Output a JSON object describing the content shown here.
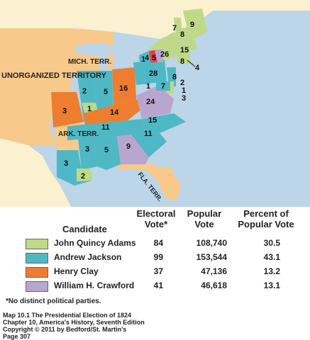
{
  "colors": {
    "water": "#bcd5e8",
    "adams": "#bfd98a",
    "jackson": "#4fb8c5",
    "clay": "#ef7d2f",
    "crawford": "#b9a6cf",
    "no_party_territory": "#f7c98b",
    "no_party_red": "#e3424a",
    "foreign_land": "#fbf0cf",
    "outside_land": "#ffffff"
  },
  "map": {
    "territories": {
      "unorganized": "UNORGANIZED TERRITORY",
      "mich": "MICH. TERR.",
      "ark": "ARK. TERR.",
      "fla": "FLA. TERR."
    },
    "state_votes": {
      "maine": "9",
      "new_hampshire": "8",
      "vermont": "7",
      "massachusetts": "15",
      "ri_ct": "8",
      "ri_pointer": "4",
      "new_york": "26",
      "ny_small_1": "1",
      "ny_small_4": "4",
      "ny_small_5": "5",
      "nj": "8",
      "de_2": "2",
      "de_1": "1",
      "md_3": "3",
      "md_7": "7",
      "md_1": "1",
      "pennsylvania": "28",
      "ohio": "16",
      "indiana": "5",
      "illinois_2": "2",
      "illinois_3": "3",
      "missouri": "3",
      "illinois_1": "1",
      "kentucky": "14",
      "virginia": "24",
      "tennessee": "11",
      "north_carolina": "15",
      "south_carolina": "11",
      "georgia": "9",
      "alabama": "5",
      "mississippi": "3",
      "louisiana_3": "3",
      "louisiana_2": "2"
    }
  },
  "legend": {
    "headers": {
      "candidate": "Candidate",
      "electoral": "Electoral Vote*",
      "popular": "Popular Vote",
      "percent": "Percent of Popular Vote"
    },
    "rows": [
      {
        "candidate": "John Quincy Adams",
        "electoral": "84",
        "popular": "108,740",
        "percent": "30.5",
        "color": "#bfd98a"
      },
      {
        "candidate": "Andrew Jackson",
        "electoral": "99",
        "popular": "153,544",
        "percent": "43.1",
        "color": "#4fb8c5"
      },
      {
        "candidate": "Henry Clay",
        "electoral": "37",
        "popular": "47,136",
        "percent": "13.2",
        "color": "#ef7d2f"
      },
      {
        "candidate": "William H. Crawford",
        "electoral": "41",
        "popular": "46,618",
        "percent": "13.1",
        "color": "#b9a6cf"
      }
    ]
  },
  "footnote": "*No distinct political parties.",
  "caption": {
    "line1": "Map 10.1 The Presidential Election of 1824",
    "line2": "Chapter 10, America's History, Seventh Edition",
    "line3": "Copyright © 2011 by Bedford/St. Martin's",
    "line4": "Page 307"
  }
}
